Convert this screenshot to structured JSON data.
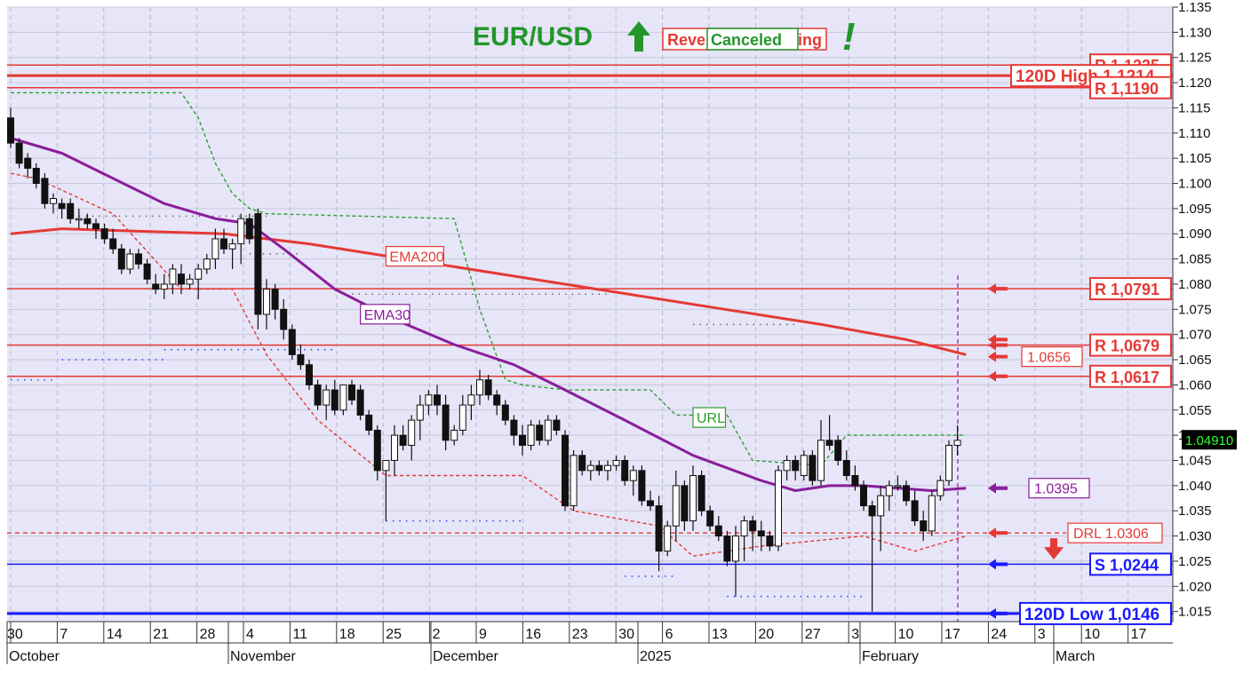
{
  "chart_data": {
    "type": "candlestick",
    "title": "EUR/USD",
    "title_arrow": "up-arrow-icon",
    "status_text_hidden": "Reve",
    "status_text_tail": "ing",
    "status_overlay": "Canceled",
    "exclamation": "!",
    "ylim": [
      1.013,
      1.135
    ],
    "y_ticks": [
      "1.015",
      "1.020",
      "1.025",
      "1.030",
      "1.035",
      "1.040",
      "1.045",
      "1.050",
      "1.055",
      "1.060",
      "1.065",
      "1.070",
      "1.075",
      "1.080",
      "1.085",
      "1.090",
      "1.095",
      "1.100",
      "1.105",
      "1.110",
      "1.115",
      "1.120",
      "1.125",
      "1.130",
      "1.135"
    ],
    "x_ticks": [
      "30",
      "7",
      "14",
      "21",
      "28",
      "4",
      "11",
      "18",
      "25",
      "2",
      "9",
      "16",
      "23",
      "30",
      "6",
      "13",
      "20",
      "27",
      "3",
      "10",
      "17",
      "24",
      "3",
      "10",
      "17"
    ],
    "x_months": [
      "October",
      "November",
      "December",
      "2025",
      "February",
      "March"
    ],
    "last_price": "1.04910",
    "colors": {
      "background": "#e6e6f8",
      "resistance": "#e53935",
      "support": "#1a1aff",
      "ema200": "#e53935",
      "ema30": "#8b1e9b",
      "url": "#2e9e2e",
      "drl": "#e53935",
      "up_candle": "#ffffff",
      "down_candle": "#111111",
      "title": "#22962a"
    },
    "horizontal_levels": [
      {
        "label": "R 1,1235",
        "value": 1.1235,
        "color": "resistance",
        "box": "red"
      },
      {
        "label": "120D High 1,1214",
        "value": 1.1214,
        "color": "resistance",
        "box": "red",
        "bold": true
      },
      {
        "label": "R 1,1190",
        "value": 1.119,
        "color": "resistance",
        "box": "red"
      },
      {
        "label": "R 1,0791",
        "value": 1.0791,
        "color": "resistance",
        "box": "red",
        "arrow": true
      },
      {
        "label": "R 1,0679",
        "value": 1.0679,
        "color": "resistance",
        "box": "red",
        "arrow": true
      },
      {
        "label": "R 1,0617",
        "value": 1.0617,
        "color": "resistance",
        "box": "red",
        "arrow": true
      },
      {
        "label": "S 1,0244",
        "value": 1.0244,
        "color": "support",
        "box": "blue",
        "arrow": true
      },
      {
        "label": "120D Low 1,0146",
        "value": 1.0146,
        "color": "support",
        "box": "blue",
        "bold": true,
        "arrow": true
      }
    ],
    "side_labels": [
      {
        "label": "1.0656",
        "value": 1.0656,
        "color": "ema200",
        "arrow": true
      },
      {
        "label": "1.0395",
        "value": 1.0395,
        "color": "ema30",
        "arrow": true
      },
      {
        "label": "DRL 1.0306",
        "value": 1.0306,
        "color": "drl",
        "arrow": true
      }
    ],
    "indicator_labels": [
      {
        "label": "EMA200",
        "color": "ema200"
      },
      {
        "label": "EMA30",
        "color": "ema30"
      },
      {
        "label": "URL",
        "color": "url"
      }
    ],
    "candles": [
      [
        1.113,
        1.115,
        1.107,
        1.108
      ],
      [
        1.108,
        1.109,
        1.103,
        1.104
      ],
      [
        1.105,
        1.106,
        1.101,
        1.103
      ],
      [
        1.103,
        1.104,
        1.099,
        1.1
      ],
      [
        1.101,
        1.102,
        1.095,
        1.096
      ],
      [
        1.096,
        1.098,
        1.094,
        1.097
      ],
      [
        1.096,
        1.097,
        1.093,
        1.095
      ],
      [
        1.096,
        1.097,
        1.092,
        1.093
      ],
      [
        1.093,
        1.095,
        1.091,
        1.093
      ],
      [
        1.093,
        1.094,
        1.091,
        1.092
      ],
      [
        1.092,
        1.093,
        1.089,
        1.091
      ],
      [
        1.091,
        1.092,
        1.088,
        1.089
      ],
      [
        1.089,
        1.091,
        1.086,
        1.087
      ],
      [
        1.087,
        1.088,
        1.082,
        1.083
      ],
      [
        1.083,
        1.087,
        1.082,
        1.086
      ],
      [
        1.086,
        1.087,
        1.083,
        1.084
      ],
      [
        1.084,
        1.085,
        1.08,
        1.081
      ],
      [
        1.08,
        1.082,
        1.078,
        1.079
      ],
      [
        1.079,
        1.082,
        1.077,
        1.08
      ],
      [
        1.08,
        1.084,
        1.078,
        1.083
      ],
      [
        1.082,
        1.084,
        1.078,
        1.08
      ],
      [
        1.08,
        1.082,
        1.079,
        1.081
      ],
      [
        1.081,
        1.084,
        1.077,
        1.083
      ],
      [
        1.083,
        1.086,
        1.082,
        1.085
      ],
      [
        1.085,
        1.091,
        1.083,
        1.089
      ],
      [
        1.089,
        1.091,
        1.086,
        1.087
      ],
      [
        1.087,
        1.089,
        1.083,
        1.088
      ],
      [
        1.088,
        1.094,
        1.084,
        1.093
      ],
      [
        1.093,
        1.094,
        1.088,
        1.089
      ],
      [
        1.094,
        1.095,
        1.071,
        1.074
      ],
      [
        1.074,
        1.081,
        1.071,
        1.079
      ],
      [
        1.079,
        1.08,
        1.073,
        1.075
      ],
      [
        1.075,
        1.077,
        1.069,
        1.071
      ],
      [
        1.071,
        1.072,
        1.065,
        1.066
      ],
      [
        1.066,
        1.068,
        1.063,
        1.064
      ],
      [
        1.064,
        1.065,
        1.059,
        1.06
      ],
      [
        1.06,
        1.061,
        1.055,
        1.056
      ],
      [
        1.056,
        1.06,
        1.053,
        1.059
      ],
      [
        1.059,
        1.061,
        1.054,
        1.055
      ],
      [
        1.055,
        1.06,
        1.054,
        1.06
      ],
      [
        1.06,
        1.061,
        1.056,
        1.057
      ],
      [
        1.059,
        1.06,
        1.053,
        1.054
      ],
      [
        1.054,
        1.055,
        1.05,
        1.051
      ],
      [
        1.051,
        1.052,
        1.041,
        1.043
      ],
      [
        1.043,
        1.045,
        1.033,
        1.045
      ],
      [
        1.045,
        1.052,
        1.042,
        1.05
      ],
      [
        1.05,
        1.052,
        1.047,
        1.048
      ],
      [
        1.048,
        1.054,
        1.045,
        1.053
      ],
      [
        1.053,
        1.058,
        1.049,
        1.056
      ],
      [
        1.056,
        1.059,
        1.054,
        1.058
      ],
      [
        1.058,
        1.06,
        1.054,
        1.056
      ],
      [
        1.056,
        1.058,
        1.047,
        1.049
      ],
      [
        1.049,
        1.052,
        1.048,
        1.051
      ],
      [
        1.051,
        1.058,
        1.05,
        1.056
      ],
      [
        1.056,
        1.06,
        1.053,
        1.058
      ],
      [
        1.058,
        1.063,
        1.056,
        1.061
      ],
      [
        1.061,
        1.062,
        1.057,
        1.058
      ],
      [
        1.058,
        1.059,
        1.054,
        1.056
      ],
      [
        1.056,
        1.057,
        1.052,
        1.053
      ],
      [
        1.053,
        1.054,
        1.048,
        1.05
      ],
      [
        1.05,
        1.052,
        1.046,
        1.048
      ],
      [
        1.048,
        1.053,
        1.047,
        1.052
      ],
      [
        1.052,
        1.053,
        1.048,
        1.049
      ],
      [
        1.049,
        1.054,
        1.048,
        1.053
      ],
      [
        1.053,
        1.054,
        1.05,
        1.051
      ],
      [
        1.05,
        1.051,
        1.035,
        1.036
      ],
      [
        1.036,
        1.047,
        1.035,
        1.046
      ],
      [
        1.046,
        1.047,
        1.042,
        1.043
      ],
      [
        1.043,
        1.045,
        1.041,
        1.044
      ],
      [
        1.044,
        1.045,
        1.042,
        1.043
      ],
      [
        1.043,
        1.045,
        1.041,
        1.044
      ],
      [
        1.044,
        1.046,
        1.043,
        1.045
      ],
      [
        1.045,
        1.046,
        1.04,
        1.041
      ],
      [
        1.041,
        1.044,
        1.038,
        1.043
      ],
      [
        1.043,
        1.044,
        1.036,
        1.037
      ],
      [
        1.037,
        1.039,
        1.035,
        1.036
      ],
      [
        1.036,
        1.038,
        1.023,
        1.027
      ],
      [
        1.027,
        1.033,
        1.026,
        1.032
      ],
      [
        1.032,
        1.043,
        1.029,
        1.04
      ],
      [
        1.04,
        1.041,
        1.031,
        1.033
      ],
      [
        1.033,
        1.044,
        1.031,
        1.042
      ],
      [
        1.042,
        1.043,
        1.034,
        1.035
      ],
      [
        1.035,
        1.036,
        1.031,
        1.032
      ],
      [
        1.032,
        1.034,
        1.029,
        1.03
      ],
      [
        1.03,
        1.031,
        1.024,
        1.025
      ],
      [
        1.025,
        1.032,
        1.018,
        1.03
      ],
      [
        1.03,
        1.034,
        1.025,
        1.033
      ],
      [
        1.033,
        1.034,
        1.027,
        1.031
      ],
      [
        1.031,
        1.033,
        1.027,
        1.03
      ],
      [
        1.03,
        1.031,
        1.027,
        1.028
      ],
      [
        1.028,
        1.044,
        1.027,
        1.043
      ],
      [
        1.043,
        1.046,
        1.041,
        1.045
      ],
      [
        1.045,
        1.046,
        1.041,
        1.043
      ],
      [
        1.042,
        1.047,
        1.041,
        1.046
      ],
      [
        1.046,
        1.047,
        1.04,
        1.041
      ],
      [
        1.041,
        1.053,
        1.04,
        1.049
      ],
      [
        1.049,
        1.054,
        1.047,
        1.048
      ],
      [
        1.049,
        1.05,
        1.044,
        1.045
      ],
      [
        1.045,
        1.047,
        1.041,
        1.042
      ],
      [
        1.042,
        1.044,
        1.039,
        1.04
      ],
      [
        1.04,
        1.041,
        1.035,
        1.036
      ],
      [
        1.036,
        1.037,
        1.015,
        1.034
      ],
      [
        1.034,
        1.04,
        1.027,
        1.038
      ],
      [
        1.038,
        1.041,
        1.035,
        1.04
      ],
      [
        1.04,
        1.042,
        1.039,
        1.04
      ],
      [
        1.04,
        1.041,
        1.036,
        1.037
      ],
      [
        1.037,
        1.039,
        1.032,
        1.033
      ],
      [
        1.033,
        1.035,
        1.029,
        1.031
      ],
      [
        1.031,
        1.039,
        1.03,
        1.038
      ],
      [
        1.038,
        1.042,
        1.037,
        1.041
      ],
      [
        1.041,
        1.049,
        1.04,
        1.048
      ],
      [
        1.048,
        1.052,
        1.046,
        1.049
      ]
    ],
    "ema200": [
      [
        0,
        1.09
      ],
      [
        6,
        1.091
      ],
      [
        15,
        1.0905
      ],
      [
        25,
        1.09
      ],
      [
        35,
        1.088
      ],
      [
        50,
        1.084
      ],
      [
        65,
        1.08
      ],
      [
        80,
        1.076
      ],
      [
        95,
        1.072
      ],
      [
        105,
        1.069
      ],
      [
        112,
        1.066
      ]
    ],
    "ema30": [
      [
        0,
        1.109
      ],
      [
        6,
        1.106
      ],
      [
        12,
        1.101
      ],
      [
        18,
        1.096
      ],
      [
        24,
        1.093
      ],
      [
        28,
        1.092
      ],
      [
        32,
        1.087
      ],
      [
        38,
        1.079
      ],
      [
        45,
        1.073
      ],
      [
        52,
        1.068
      ],
      [
        59,
        1.064
      ],
      [
        65,
        1.059
      ],
      [
        72,
        1.053
      ],
      [
        80,
        1.046
      ],
      [
        88,
        1.041
      ],
      [
        92,
        1.039
      ],
      [
        96,
        1.04
      ],
      [
        100,
        1.04
      ],
      [
        104,
        1.0395
      ],
      [
        108,
        1.039
      ],
      [
        112,
        1.0395
      ]
    ],
    "url_line": [
      [
        0,
        1.118
      ],
      [
        20,
        1.118
      ],
      [
        22,
        1.113
      ],
      [
        24,
        1.104
      ],
      [
        26,
        1.098
      ],
      [
        28,
        1.095
      ],
      [
        30,
        1.094
      ],
      [
        52,
        1.093
      ],
      [
        55,
        1.075
      ],
      [
        58,
        1.061
      ],
      [
        60,
        1.06
      ],
      [
        65,
        1.059
      ],
      [
        75,
        1.059
      ],
      [
        78,
        1.054
      ],
      [
        84,
        1.054
      ],
      [
        87,
        1.045
      ],
      [
        95,
        1.044
      ],
      [
        98,
        1.05
      ],
      [
        112,
        1.05
      ]
    ],
    "drl_line": [
      [
        0,
        1.102
      ],
      [
        3,
        1.101
      ],
      [
        12,
        1.094
      ],
      [
        20,
        1.079
      ],
      [
        26,
        1.079
      ],
      [
        30,
        1.066
      ],
      [
        36,
        1.053
      ],
      [
        44,
        1.042
      ],
      [
        60,
        1.042
      ],
      [
        66,
        1.035
      ],
      [
        76,
        1.032
      ],
      [
        80,
        1.026
      ],
      [
        88,
        1.028
      ],
      [
        100,
        1.03
      ],
      [
        106,
        1.027
      ],
      [
        112,
        1.03
      ]
    ],
    "blue_dots": [
      {
        "from": 0,
        "to": 5,
        "value": 1.061
      },
      {
        "from": 6,
        "to": 18,
        "value": 1.065
      },
      {
        "from": 18,
        "to": 38,
        "value": 1.067
      },
      {
        "from": 44,
        "to": 60,
        "value": 1.033
      },
      {
        "from": 72,
        "to": 78,
        "value": 1.022
      },
      {
        "from": 84,
        "to": 100,
        "value": 1.018
      }
    ],
    "grey_dots": [
      {
        "from": 8,
        "to": 30,
        "value": 1.0935
      },
      {
        "from": 40,
        "to": 70,
        "value": 1.078
      },
      {
        "from": 80,
        "to": 92,
        "value": 1.072
      },
      {
        "from": 28,
        "to": 34,
        "value": 1.086
      }
    ]
  }
}
